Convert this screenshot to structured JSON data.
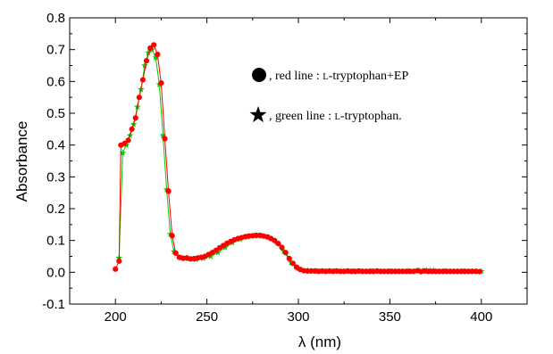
{
  "chart_data": {
    "type": "scatter",
    "xlabel": "λ (nm)",
    "ylabel": "Absorbance",
    "xlim": [
      175,
      425
    ],
    "ylim": [
      -0.1,
      0.8
    ],
    "x_ticks": [
      "200",
      "250",
      "300",
      "350",
      "400"
    ],
    "y_ticks": [
      "-0.1",
      "0.0",
      "0.1",
      "0.2",
      "0.3",
      "0.4",
      "0.5",
      "0.6",
      "0.7",
      "0.8"
    ],
    "grid": false,
    "legend": {
      "position": "top-right",
      "entries": [
        {
          "symbol": "circle",
          "prefix": ", red line : ",
          "name_sc": "l",
          "name_rest": "-tryptophan+EP"
        },
        {
          "symbol": "star",
          "prefix": ", green line : ",
          "name_sc": "l",
          "name_rest": "-tryptophan."
        }
      ]
    },
    "series": [
      {
        "marker": "circle",
        "color": "#ff0000",
        "x": [
          200,
          202,
          203,
          205,
          207,
          209,
          211,
          213,
          215,
          217,
          219,
          221,
          223,
          225,
          227,
          229,
          231,
          233,
          235,
          237,
          239,
          241,
          243,
          245,
          247,
          249,
          251,
          253,
          255,
          257,
          259,
          261,
          263,
          265,
          267,
          269,
          271,
          273,
          275,
          277,
          279,
          281,
          283,
          285,
          287,
          289,
          291,
          293,
          295,
          297,
          299,
          301,
          303,
          305,
          307,
          309,
          311,
          313,
          315,
          317,
          319,
          321,
          323,
          325,
          327,
          329,
          331,
          333,
          335,
          337,
          339,
          341,
          343,
          345,
          347,
          349,
          351,
          353,
          355,
          357,
          359,
          361,
          363,
          365,
          367,
          369,
          371,
          373,
          375,
          377,
          379,
          381,
          383,
          385,
          387,
          389,
          391,
          393,
          395,
          397,
          399
        ],
        "y": [
          0.01,
          0.035,
          0.4,
          0.405,
          0.415,
          0.45,
          0.485,
          0.55,
          0.605,
          0.665,
          0.705,
          0.715,
          0.685,
          0.595,
          0.42,
          0.255,
          0.115,
          0.06,
          0.047,
          0.044,
          0.045,
          0.042,
          0.043,
          0.045,
          0.047,
          0.05,
          0.056,
          0.062,
          0.069,
          0.077,
          0.084,
          0.091,
          0.097,
          0.102,
          0.106,
          0.109,
          0.112,
          0.114,
          0.115,
          0.116,
          0.116,
          0.114,
          0.111,
          0.106,
          0.1,
          0.09,
          0.078,
          0.062,
          0.043,
          0.028,
          0.016,
          0.009,
          0.005,
          0.004,
          0.004,
          0.004,
          0.003,
          0.004,
          0.003,
          0.004,
          0.003,
          0.004,
          0.003,
          0.003,
          0.004,
          0.003,
          0.003,
          0.004,
          0.003,
          0.003,
          0.003,
          0.003,
          0.004,
          0.003,
          0.003,
          0.003,
          0.003,
          0.003,
          0.003,
          0.003,
          0.003,
          0.003,
          0.003,
          0.005,
          0.002,
          0.004,
          0.003,
          0.003,
          0.003,
          0.003,
          0.003,
          0.003,
          0.003,
          0.003,
          0.003,
          0.003,
          0.003,
          0.003,
          0.003,
          0.003,
          0.002
        ]
      },
      {
        "marker": "star",
        "color": "#00cc00",
        "x": [
          202,
          204,
          206,
          208,
          210,
          212,
          214,
          216,
          218,
          220,
          222,
          224,
          226,
          228,
          230,
          232,
          236,
          240,
          244,
          248,
          252,
          256,
          260,
          264,
          268,
          272,
          276,
          280,
          284,
          288,
          292,
          296,
          300,
          305,
          310,
          320,
          330,
          340,
          350,
          360,
          366,
          368,
          370,
          372,
          374,
          380,
          390,
          400
        ],
        "y": [
          0.045,
          0.375,
          0.4,
          0.43,
          0.465,
          0.52,
          0.575,
          0.65,
          0.69,
          0.7,
          0.675,
          0.59,
          0.43,
          0.26,
          0.12,
          0.065,
          0.045,
          0.042,
          0.04,
          0.044,
          0.05,
          0.062,
          0.078,
          0.093,
          0.104,
          0.111,
          0.114,
          0.114,
          0.11,
          0.095,
          0.066,
          0.03,
          0.012,
          0.005,
          0.004,
          0.003,
          0.003,
          0.004,
          0.003,
          0.004,
          0.006,
          0.005,
          0.006,
          0.005,
          0.006,
          0.004,
          0.003,
          0.003
        ]
      }
    ]
  }
}
